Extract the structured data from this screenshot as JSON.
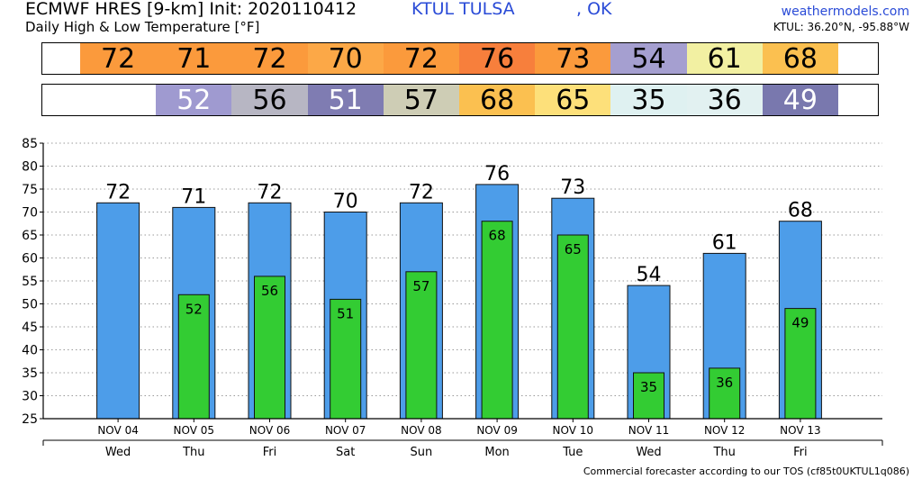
{
  "header": {
    "model": "ECMWF HRES [9-km] Init: 2020110412",
    "station": "KTUL TULSA",
    "state": ", OK",
    "subtitle": "Daily High & Low Temperature [°F]",
    "brand": "weathermodels.com",
    "coords": "KTUL: 36.20°N, -95.88°W"
  },
  "footer": "Commercial forecaster according to our TOS (cf85t0UKTUL1q086)",
  "colors": {
    "high_bar": "#4d9de9",
    "low_bar": "#33cc33",
    "high_cells": [
      "#fb9a3c",
      "#fb9a3c",
      "#fb9a3c",
      "#fca847",
      "#fb9a3c",
      "#f77f3c",
      "#fb9a3c",
      "#a59fd0",
      "#f2f0a2",
      "#fbc050"
    ],
    "low_cells": [
      "",
      "#9f9ad0",
      "#b7b6c3",
      "#7f7cb2",
      "#cecdb5",
      "#fbc050",
      "#fde07a",
      "#dff1f1",
      "#e2f1f1",
      "#7978ae"
    ]
  },
  "chart_data": {
    "type": "bar",
    "categories": [
      "NOV 04",
      "NOV 05",
      "NOV 06",
      "NOV 07",
      "NOV 08",
      "NOV 09",
      "NOV 10",
      "NOV 11",
      "NOV 12",
      "NOV 13"
    ],
    "weekdays": [
      "Wed",
      "Thu",
      "Fri",
      "Sat",
      "Sun",
      "Mon",
      "Tue",
      "Wed",
      "Thu",
      "Fri"
    ],
    "series": [
      {
        "values": [
          72,
          71,
          72,
          70,
          72,
          76,
          73,
          54,
          61,
          68
        ]
      },
      {
        "values": [
          null,
          52,
          56,
          51,
          57,
          68,
          65,
          35,
          36,
          49
        ]
      }
    ],
    "high_labels": [
      "72",
      "71",
      "72",
      "70",
      "72",
      "76",
      "73",
      "54",
      "61",
      "68"
    ],
    "low_labels": [
      "",
      "52",
      "56",
      "51",
      "57",
      "68",
      "65",
      "35",
      "36",
      "49"
    ],
    "ylim": [
      25,
      85
    ],
    "yticks": [
      "25",
      "30",
      "35",
      "40",
      "45",
      "50",
      "55",
      "60",
      "65",
      "70",
      "75",
      "80",
      "85"
    ],
    "grid": true,
    "title": "",
    "xlabel": "",
    "ylabel": ""
  }
}
